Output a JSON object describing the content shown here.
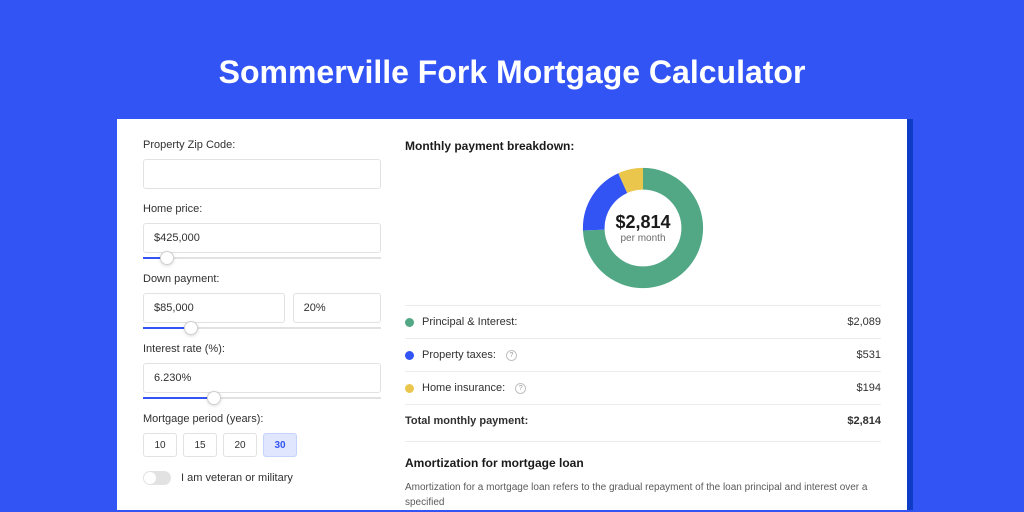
{
  "page": {
    "title": "Sommerville Fork Mortgage Calculator",
    "background_color": "#3354f4",
    "card_shadow_color": "#0e3cc6",
    "text_color": "#303030",
    "border_color": "#e2e2e2"
  },
  "form": {
    "zip": {
      "label": "Property Zip Code:",
      "value": ""
    },
    "home_price": {
      "label": "Home price:",
      "value": "$425,000",
      "slider_pct": 10
    },
    "down_payment": {
      "label": "Down payment:",
      "amount": "$85,000",
      "pct": "20%",
      "slider_pct": 20
    },
    "interest_rate": {
      "label": "Interest rate (%):",
      "value": "6.230%",
      "slider_pct": 30
    },
    "mortgage_period": {
      "label": "Mortgage period (years):",
      "options": [
        "10",
        "15",
        "20",
        "30"
      ],
      "selected": "30"
    },
    "veteran": {
      "label": "I am veteran or military",
      "value": false
    }
  },
  "breakdown": {
    "heading": "Monthly payment breakdown:",
    "donut": {
      "amount": "$2,814",
      "sub": "per month",
      "slices": [
        {
          "color": "#52a885",
          "pct": 74.2
        },
        {
          "color": "#3354f4",
          "pct": 18.9
        },
        {
          "color": "#eac64d",
          "pct": 6.9
        }
      ],
      "stroke_width": 20
    },
    "items": [
      {
        "label": "Principal & Interest:",
        "value": "$2,089",
        "color": "#52a885",
        "help": false
      },
      {
        "label": "Property taxes:",
        "value": "$531",
        "color": "#3354f4",
        "help": true
      },
      {
        "label": "Home insurance:",
        "value": "$194",
        "color": "#eac64d",
        "help": true
      }
    ],
    "total": {
      "label": "Total monthly payment:",
      "value": "$2,814"
    }
  },
  "amortization": {
    "heading": "Amortization for mortgage loan",
    "body": "Amortization for a mortgage loan refers to the gradual repayment of the loan principal and interest over a specified"
  }
}
